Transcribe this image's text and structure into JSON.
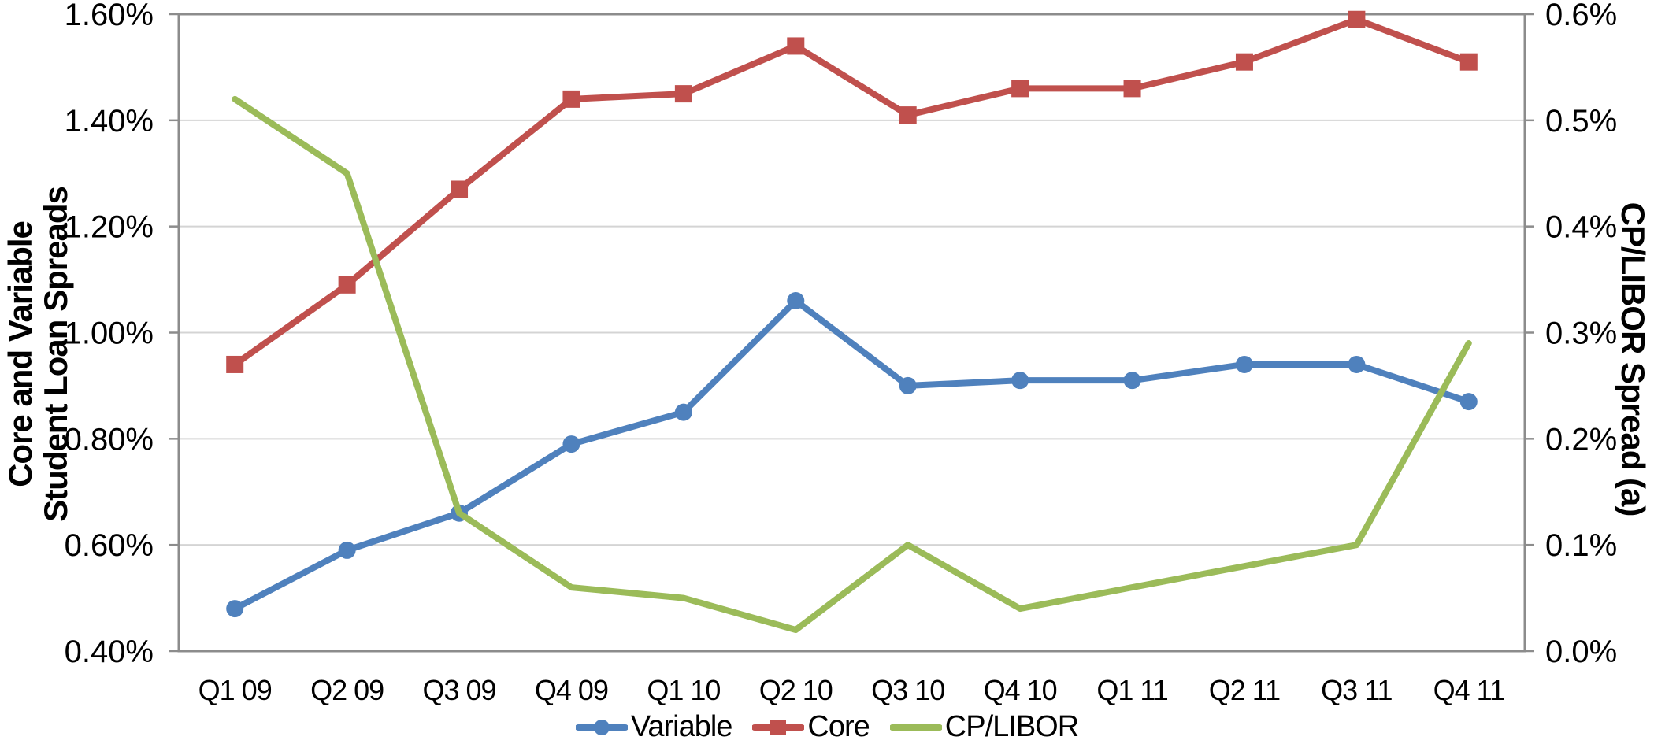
{
  "chart_data": {
    "type": "line",
    "categories": [
      "Q1 09",
      "Q2 09",
      "Q3 09",
      "Q4 09",
      "Q1 10",
      "Q2 10",
      "Q3 10",
      "Q4 10",
      "Q1 11",
      "Q2 11",
      "Q3 11",
      "Q4 11"
    ],
    "series": [
      {
        "name": "Variable",
        "axis": "left",
        "color": "#4F81BD",
        "marker": "circle",
        "values": [
          0.48,
          0.59,
          0.66,
          0.79,
          0.85,
          1.06,
          0.9,
          0.91,
          0.91,
          0.94,
          0.94,
          0.87
        ]
      },
      {
        "name": "Core",
        "axis": "left",
        "color": "#C0504D",
        "marker": "square",
        "values": [
          0.94,
          1.09,
          1.27,
          1.44,
          1.45,
          1.54,
          1.41,
          1.46,
          1.46,
          1.51,
          1.59,
          1.51
        ]
      },
      {
        "name": "CP/LIBOR",
        "axis": "right",
        "color": "#9BBB59",
        "marker": "none",
        "values": [
          0.52,
          0.45,
          0.13,
          0.06,
          0.05,
          0.02,
          0.1,
          0.04,
          0.06,
          0.08,
          0.1,
          0.29
        ]
      }
    ],
    "left_axis": {
      "title_lines": [
        "Core and Variable",
        "Student Loan Spreads"
      ],
      "min": 0.4,
      "max": 1.6,
      "step": 0.2,
      "ticks": [
        "1.60%",
        "1.40%",
        "1.20%",
        "1.00%",
        "0.80%",
        "0.60%",
        "0.40%"
      ]
    },
    "right_axis": {
      "title": "CP/LIBOR  Spread (a)",
      "min": 0.0,
      "max": 0.6,
      "step": 0.1,
      "ticks": [
        "0.6%",
        "0.5%",
        "0.4%",
        "0.3%",
        "0.2%",
        "0.1%",
        "0.0%"
      ]
    },
    "legend_position": "bottom",
    "grid": "horizontal",
    "colors": {
      "gridline": "#D4D4D4",
      "plot_border": "#8C8C8C",
      "text": "#000000",
      "background": "#FFFFFF"
    }
  }
}
